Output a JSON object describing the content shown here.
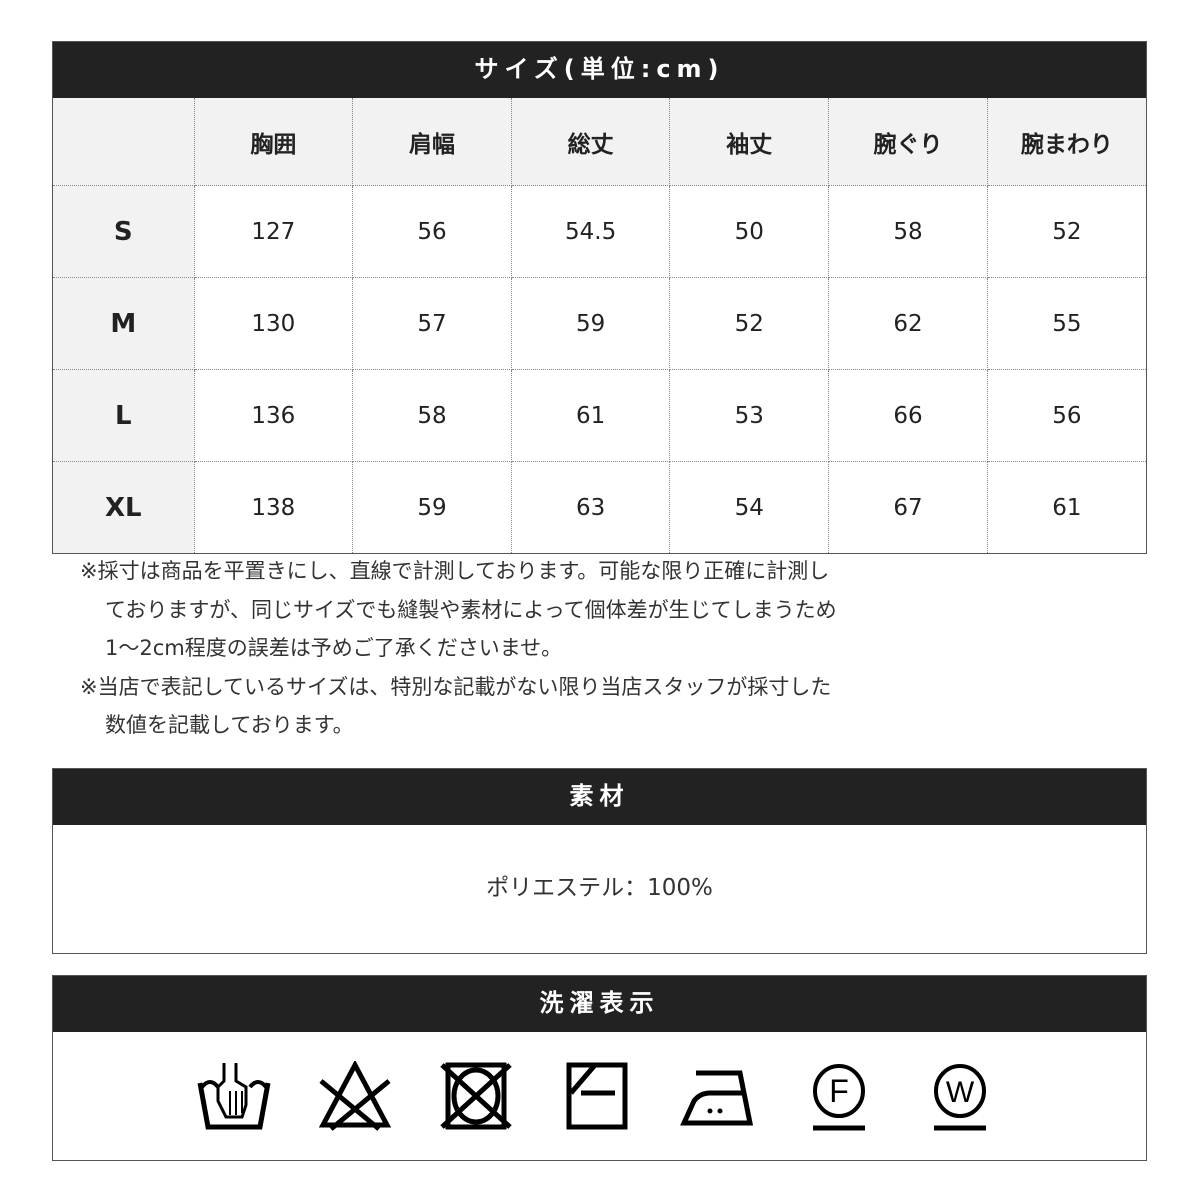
{
  "size_table": {
    "title": "サイズ(単位:cm)",
    "columns": [
      "",
      "胸囲",
      "肩幅",
      "総丈",
      "袖丈",
      "腕ぐり",
      "腕まわり"
    ],
    "rows": [
      {
        "size": "S",
        "values": [
          "127",
          "56",
          "54.5",
          "50",
          "58",
          "52"
        ]
      },
      {
        "size": "M",
        "values": [
          "130",
          "57",
          "59",
          "52",
          "62",
          "55"
        ]
      },
      {
        "size": "L",
        "values": [
          "136",
          "58",
          "61",
          "53",
          "66",
          "56"
        ]
      },
      {
        "size": "XL",
        "values": [
          "138",
          "59",
          "63",
          "54",
          "67",
          "61"
        ]
      }
    ]
  },
  "notes": [
    "※採寸は商品を平置きにし、直線で計測しております。可能な限り正確に計測し",
    "ておりますが、同じサイズでも縫製や素材によって個体差が生じてしまうため",
    "1～2cm程度の誤差は予めご了承くださいませ。",
    "※当店で表記しているサイズは、特別な記載がない限り当店スタッフが採寸した",
    "数値を記載しております。"
  ],
  "material": {
    "title": "素材",
    "text": "ポリエステル：100%"
  },
  "care": {
    "title": "洗濯表示",
    "icons": [
      "hand-wash-icon",
      "no-bleach-icon",
      "no-tumble-dry-icon",
      "line-dry-shade-icon",
      "iron-medium-icon",
      "dry-clean-f-icon",
      "wet-clean-w-icon"
    ],
    "letters": {
      "f": "F",
      "w": "W"
    }
  }
}
